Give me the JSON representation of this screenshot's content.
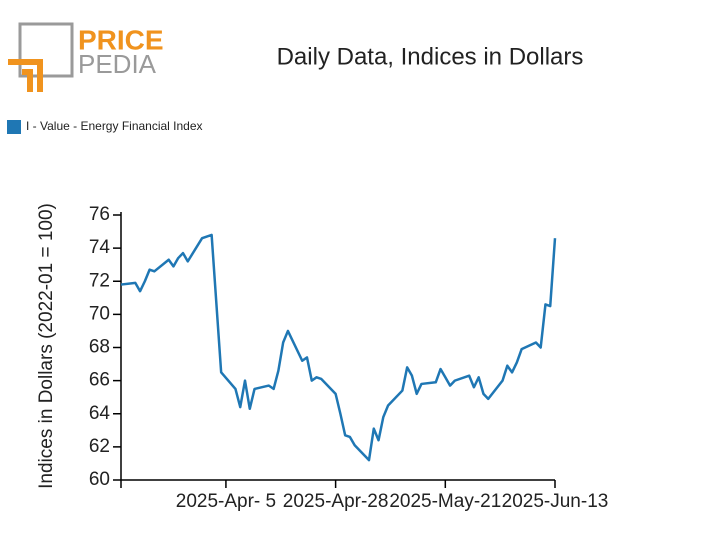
{
  "logo": {
    "line1": "PRICE",
    "line2": "PEDIA"
  },
  "chart_data": {
    "type": "line",
    "title": "Daily Data, Indices in Dollars",
    "y_label": "Indices in Dollars (2022-01 = 100)",
    "x": [
      "2025-03-14",
      "2025-03-17",
      "2025-03-18",
      "2025-03-19",
      "2025-03-20",
      "2025-03-21",
      "2025-03-24",
      "2025-03-25",
      "2025-03-26",
      "2025-03-27",
      "2025-03-28",
      "2025-03-31",
      "2025-04-01",
      "2025-04-02",
      "2025-04-04",
      "2025-04-07",
      "2025-04-08",
      "2025-04-09",
      "2025-04-10",
      "2025-04-11",
      "2025-04-14",
      "2025-04-15",
      "2025-04-16",
      "2025-04-17",
      "2025-04-18",
      "2025-04-21",
      "2025-04-22",
      "2025-04-23",
      "2025-04-24",
      "2025-04-25",
      "2025-04-28",
      "2025-04-29",
      "2025-04-30",
      "2025-05-01",
      "2025-05-02",
      "2025-05-05",
      "2025-05-06",
      "2025-05-07",
      "2025-05-08",
      "2025-05-09",
      "2025-05-12",
      "2025-05-13",
      "2025-05-14",
      "2025-05-15",
      "2025-05-16",
      "2025-05-19",
      "2025-05-20",
      "2025-05-21",
      "2025-05-22",
      "2025-05-23",
      "2025-05-26",
      "2025-05-27",
      "2025-05-28",
      "2025-05-29",
      "2025-05-30",
      "2025-06-02",
      "2025-06-03",
      "2025-06-04",
      "2025-06-05",
      "2025-06-06",
      "2025-06-09",
      "2025-06-10",
      "2025-06-11",
      "2025-06-12",
      "2025-06-13"
    ],
    "series": [
      {
        "name": "I - Value - Energy Financial Index",
        "color": "#1f77b4",
        "values": [
          71.8,
          71.9,
          71.4,
          72.0,
          72.7,
          72.6,
          73.3,
          72.9,
          73.4,
          73.7,
          73.2,
          74.6,
          74.7,
          74.8,
          66.5,
          65.5,
          64.4,
          66.0,
          64.3,
          65.5,
          65.7,
          65.5,
          66.6,
          68.3,
          69.0,
          67.2,
          67.4,
          66.0,
          66.2,
          66.1,
          65.2,
          64.0,
          62.7,
          62.6,
          62.1,
          61.2,
          63.1,
          62.4,
          63.8,
          64.5,
          65.4,
          66.8,
          66.3,
          65.2,
          65.8,
          65.9,
          66.7,
          66.2,
          65.7,
          66.0,
          66.3,
          65.6,
          66.2,
          65.2,
          64.9,
          66.0,
          66.9,
          66.5,
          67.1,
          67.9,
          68.3,
          68.0,
          70.6,
          70.5,
          74.6
        ]
      }
    ],
    "xlim": [
      "2025-03-14",
      "2025-06-13"
    ],
    "xticks": [
      {
        "value": "2025-04-05",
        "label": "2025-Apr- 5"
      },
      {
        "value": "2025-04-28",
        "label": "2025-Apr-28"
      },
      {
        "value": "2025-05-21",
        "label": "2025-May-21"
      },
      {
        "value": "2025-06-13",
        "label": "2025-Jun-13"
      }
    ],
    "ylim": [
      60,
      76
    ],
    "yticks": [
      60,
      62,
      64,
      66,
      68,
      70,
      72,
      74,
      76
    ],
    "grid": false,
    "legend": "top-left"
  }
}
